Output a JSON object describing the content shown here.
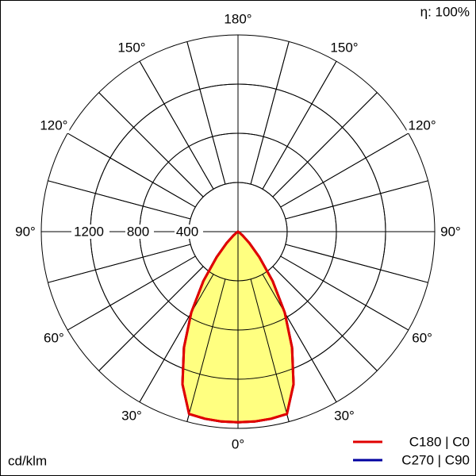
{
  "chart_data": {
    "type": "polar",
    "efficiency": "η: 100%",
    "unit": "cd/klm",
    "x": [
      -60,
      -55,
      -50,
      -45,
      -40,
      -35,
      -30,
      -25,
      -20,
      -15,
      -10,
      -5,
      0,
      5,
      10,
      15,
      20,
      25,
      30,
      35,
      40,
      45,
      50,
      55,
      60
    ],
    "series": [
      {
        "name": "C270 | C90",
        "color": "#0000a0",
        "values": [
          0,
          15,
          50,
          130,
          270,
          490,
          760,
          1040,
          1320,
          1535,
          1545,
          1550,
          1550,
          1550,
          1545,
          1535,
          1320,
          1040,
          760,
          490,
          270,
          130,
          50,
          15,
          0
        ]
      },
      {
        "name": "C180 | C0",
        "color": "#e00000",
        "values": [
          0,
          15,
          50,
          130,
          270,
          490,
          760,
          1040,
          1320,
          1535,
          1545,
          1550,
          1550,
          1550,
          1545,
          1535,
          1320,
          1040,
          760,
          490,
          270,
          130,
          50,
          15,
          0
        ]
      }
    ],
    "fill_color": "#ffff80",
    "rlim": [
      0,
      1600
    ],
    "rticks": [
      400,
      800,
      1200
    ],
    "angle_ticks": [
      {
        "value": 0,
        "label": "0°"
      },
      {
        "value": 30,
        "label": "30°"
      },
      {
        "value": 60,
        "label": "60°"
      },
      {
        "value": 90,
        "label": "90°"
      },
      {
        "value": 120,
        "label": "120°"
      },
      {
        "value": 150,
        "label": "150°"
      },
      {
        "value": 180,
        "label": "180°"
      }
    ],
    "spoke_step": 15
  }
}
